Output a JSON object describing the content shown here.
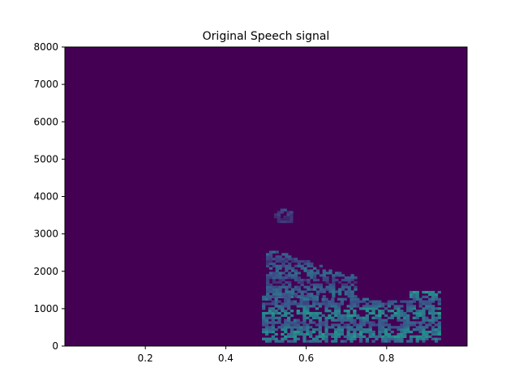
{
  "chart_data": {
    "type": "heatmap",
    "title": "Original Speech signal",
    "xlabel": "",
    "ylabel": "",
    "xlim": [
      0.0,
      1.0
    ],
    "ylim": [
      0,
      8000
    ],
    "x_ticks": [
      0.2,
      0.4,
      0.6,
      0.8
    ],
    "x_tick_labels": [
      "0.2",
      "0.4",
      "0.6",
      "0.8"
    ],
    "y_ticks": [
      0,
      1000,
      2000,
      3000,
      4000,
      5000,
      6000,
      7000,
      8000
    ],
    "y_tick_labels": [
      "0",
      "1000",
      "2000",
      "3000",
      "4000",
      "5000",
      "6000",
      "7000",
      "8000"
    ],
    "colormap": "viridis",
    "background_color": "#440154",
    "grid": false,
    "energy_regions": [
      {
        "t_start": 0.49,
        "t_end": 0.93,
        "f_low": 100,
        "f_high": 1300,
        "intensity": 0.55
      },
      {
        "t_start": 0.5,
        "t_end": 0.72,
        "f_low": 1300,
        "f_high": 2600,
        "intensity": 0.4
      },
      {
        "t_start": 0.52,
        "t_end": 0.56,
        "f_low": 3300,
        "f_high": 3650,
        "intensity": 0.3
      }
    ]
  }
}
